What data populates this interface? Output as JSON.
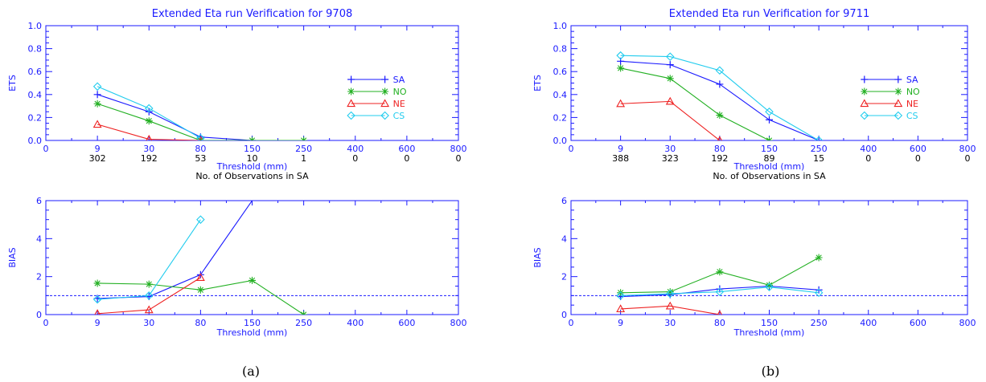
{
  "captions": [
    "(a)",
    "(b)"
  ],
  "chart_data": [
    {
      "id": "a-ets",
      "type": "line",
      "title": "Extended Eta run Verification for  9708",
      "xlabel": "Threshold (mm)",
      "ylabel": "ETS",
      "x_tick_labels": [
        "0",
        "9",
        "30",
        "80",
        "150",
        "250",
        "400",
        "600",
        "800"
      ],
      "obs_counts": [
        "302",
        "192",
        "53",
        "10",
        "1",
        "0",
        "0",
        "0"
      ],
      "obs_label": "No. of Observations in SA",
      "y_ticks": [
        "0.0",
        "0.2",
        "0.4",
        "0.6",
        "0.8",
        "1.0"
      ],
      "ylim": [
        0,
        1.0
      ],
      "legend": "right",
      "series": [
        {
          "name": "SA",
          "color": "#1a1aff",
          "marker": "plus",
          "x": [
            "9",
            "30",
            "80",
            "150"
          ],
          "values": [
            0.4,
            0.25,
            0.03,
            0.0
          ]
        },
        {
          "name": "NO",
          "color": "#22b022",
          "marker": "star",
          "x": [
            "9",
            "30",
            "80",
            "150",
            "250"
          ],
          "values": [
            0.32,
            0.17,
            0.0,
            0.0,
            0.0
          ]
        },
        {
          "name": "NE",
          "color": "#ee2222",
          "marker": "triangle",
          "x": [
            "9",
            "30",
            "80"
          ],
          "values": [
            0.14,
            0.01,
            0.0
          ]
        },
        {
          "name": "CS",
          "color": "#22ccee",
          "marker": "diamond",
          "x": [
            "9",
            "30",
            "80"
          ],
          "values": [
            0.47,
            0.28,
            0.02
          ]
        }
      ]
    },
    {
      "id": "a-bias",
      "type": "line",
      "xlabel": "Threshold (mm)",
      "ylabel": "BIAS",
      "x_tick_labels": [
        "0",
        "9",
        "30",
        "80",
        "150",
        "250",
        "400",
        "600",
        "800"
      ],
      "y_ticks": [
        "0",
        "2",
        "4",
        "6"
      ],
      "ylim": [
        0,
        6
      ],
      "reference_line": 1.0,
      "series": [
        {
          "name": "SA",
          "color": "#1a1aff",
          "marker": "plus",
          "x": [
            "9",
            "30",
            "80",
            "150"
          ],
          "values": [
            0.85,
            0.95,
            2.1,
            6.5
          ]
        },
        {
          "name": "NO",
          "color": "#22b022",
          "marker": "star",
          "x": [
            "9",
            "30",
            "80",
            "150",
            "250"
          ],
          "values": [
            1.65,
            1.6,
            1.3,
            1.8,
            0.0
          ]
        },
        {
          "name": "NE",
          "color": "#ee2222",
          "marker": "triangle",
          "x": [
            "9",
            "30",
            "80"
          ],
          "values": [
            0.05,
            0.25,
            1.95
          ]
        },
        {
          "name": "CS",
          "color": "#22ccee",
          "marker": "diamond",
          "x": [
            "9",
            "30",
            "80"
          ],
          "values": [
            0.8,
            1.0,
            5.0
          ]
        }
      ]
    },
    {
      "id": "b-ets",
      "type": "line",
      "title": "Extended Eta run Verification for  9711",
      "xlabel": "Threshold (mm)",
      "ylabel": "ETS",
      "x_tick_labels": [
        "0",
        "9",
        "30",
        "80",
        "150",
        "250",
        "400",
        "600",
        "800"
      ],
      "obs_counts": [
        "388",
        "323",
        "192",
        "89",
        "15",
        "0",
        "0",
        "0"
      ],
      "obs_label": "No. of Observations in SA",
      "y_ticks": [
        "0.0",
        "0.2",
        "0.4",
        "0.6",
        "0.8",
        "1.0"
      ],
      "ylim": [
        0,
        1.0
      ],
      "legend": "right",
      "series": [
        {
          "name": "SA",
          "color": "#1a1aff",
          "marker": "plus",
          "x": [
            "9",
            "30",
            "80",
            "150",
            "250"
          ],
          "values": [
            0.69,
            0.66,
            0.49,
            0.18,
            0.0
          ]
        },
        {
          "name": "NO",
          "color": "#22b022",
          "marker": "star",
          "x": [
            "9",
            "30",
            "80",
            "150"
          ],
          "values": [
            0.63,
            0.54,
            0.22,
            0.0
          ]
        },
        {
          "name": "NE",
          "color": "#ee2222",
          "marker": "triangle",
          "x": [
            "9",
            "30",
            "80"
          ],
          "values": [
            0.32,
            0.34,
            0.0
          ]
        },
        {
          "name": "CS",
          "color": "#22ccee",
          "marker": "diamond",
          "x": [
            "9",
            "30",
            "80",
            "150",
            "250"
          ],
          "values": [
            0.74,
            0.73,
            0.61,
            0.25,
            0.0
          ]
        }
      ]
    },
    {
      "id": "b-bias",
      "type": "line",
      "xlabel": "Threshold (mm)",
      "ylabel": "BIAS",
      "x_tick_labels": [
        "0",
        "9",
        "30",
        "80",
        "150",
        "250",
        "400",
        "600",
        "800"
      ],
      "y_ticks": [
        "0",
        "2",
        "4",
        "6"
      ],
      "ylim": [
        0,
        6
      ],
      "reference_line": 1.0,
      "series": [
        {
          "name": "SA",
          "color": "#1a1aff",
          "marker": "plus",
          "x": [
            "9",
            "30",
            "80",
            "150",
            "250"
          ],
          "values": [
            0.95,
            1.05,
            1.35,
            1.5,
            1.3
          ]
        },
        {
          "name": "NO",
          "color": "#22b022",
          "marker": "star",
          "x": [
            "9",
            "30",
            "80",
            "150",
            "250"
          ],
          "values": [
            1.15,
            1.2,
            2.25,
            1.55,
            3.0
          ]
        },
        {
          "name": "NE",
          "color": "#ee2222",
          "marker": "triangle",
          "x": [
            "9",
            "30",
            "80"
          ],
          "values": [
            0.3,
            0.45,
            0.0
          ]
        },
        {
          "name": "CS",
          "color": "#22ccee",
          "marker": "diamond",
          "x": [
            "9",
            "30",
            "80",
            "150",
            "250"
          ],
          "values": [
            1.0,
            1.1,
            1.2,
            1.45,
            1.15
          ]
        }
      ]
    }
  ]
}
